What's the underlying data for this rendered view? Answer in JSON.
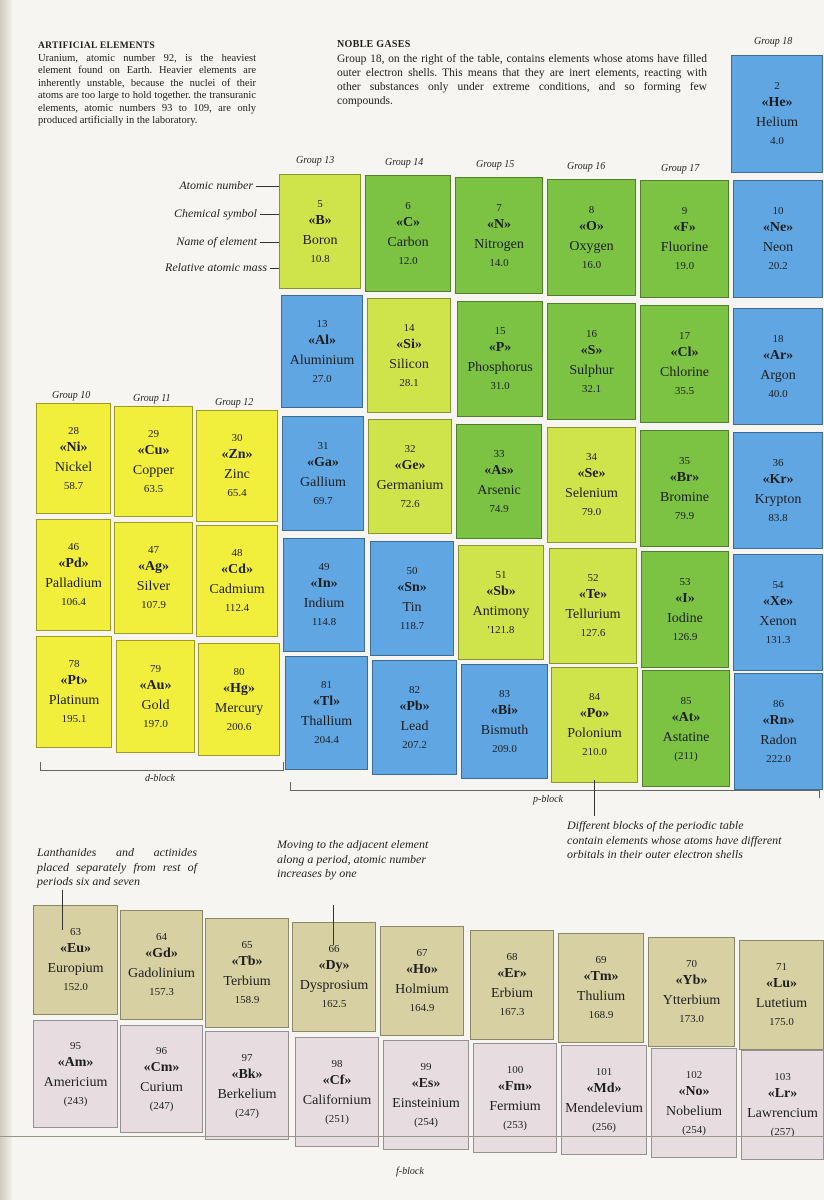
{
  "artificial": {
    "heading": "ARTIFICIAL ELEMENTS",
    "body": "Uranium, atomic number 92, is the heaviest element found on Earth. Heavier elements are inherently unstable, because the nuclei of their atoms are too large to hold together. the transuranic elements, atomic numbers 93 to 109, are only produced artificially in the laboratory."
  },
  "noble": {
    "heading": "NOBLE GASES",
    "body": "Group 18, on the right of the table, contains elements whose atoms have filled outer electron shells. This means that they are inert elements, reacting with other substances only under extreme conditions, and so forming few compounds."
  },
  "group_labels": {
    "g10": "Group 10",
    "g11": "Group 11",
    "g12": "Group 12",
    "g13": "Group 13",
    "g14": "Group 14",
    "g15": "Group 15",
    "g16": "Group 16",
    "g17": "Group 17",
    "g18": "Group 18"
  },
  "legend": {
    "atomic_number": "Atomic number",
    "chemical_symbol": "Chemical symbol",
    "name_of_element": "Name of element",
    "relative_atomic_mass": "Relative atomic mass"
  },
  "blocks": {
    "d": "d-block",
    "p": "p-block",
    "f": "f-block"
  },
  "notes": {
    "blocks_note": "Different blocks of the periodic table contain elements whose atoms have different orbitals in their outer electron shells",
    "lanthanides_note": "Lanthanides and actinides placed separately from rest of periods six and seven",
    "adjacent_note": "Moving to the adjacent element along a period, atomic number increases by one"
  },
  "colors": {
    "yellow": "#f1ef3b",
    "lime": "#cfe44a",
    "green": "#7cc243",
    "blue": "#5fa6e3",
    "lanthanide": "#d6d0a2",
    "actinide": "#e7dde0"
  },
  "tiles": {
    "He": {
      "num": "2",
      "sym": "«He»",
      "name": "Helium",
      "mass": "4.0"
    },
    "B": {
      "num": "5",
      "sym": "«B»",
      "name": "Boron",
      "mass": "10.8"
    },
    "C": {
      "num": "6",
      "sym": "«C»",
      "name": "Carbon",
      "mass": "12.0"
    },
    "N": {
      "num": "7",
      "sym": "«N»",
      "name": "Nitrogen",
      "mass": "14.0"
    },
    "O": {
      "num": "8",
      "sym": "«O»",
      "name": "Oxygen",
      "mass": "16.0"
    },
    "F": {
      "num": "9",
      "sym": "«F»",
      "name": "Fluorine",
      "mass": "19.0"
    },
    "Ne": {
      "num": "10",
      "sym": "«Ne»",
      "name": "Neon",
      "mass": "20.2"
    },
    "Al": {
      "num": "13",
      "sym": "«Al»",
      "name": "Aluminium",
      "mass": "27.0"
    },
    "Si": {
      "num": "14",
      "sym": "«Si»",
      "name": "Silicon",
      "mass": "28.1"
    },
    "P": {
      "num": "15",
      "sym": "«P»",
      "name": "Phosphorus",
      "mass": "31.0"
    },
    "S": {
      "num": "16",
      "sym": "«S»",
      "name": "Sulphur",
      "mass": "32.1"
    },
    "Cl": {
      "num": "17",
      "sym": "«Cl»",
      "name": "Chlorine",
      "mass": "35.5"
    },
    "Ar": {
      "num": "18",
      "sym": "«Ar»",
      "name": "Argon",
      "mass": "40.0"
    },
    "Ni": {
      "num": "28",
      "sym": "«Ni»",
      "name": "Nickel",
      "mass": "58.7"
    },
    "Cu": {
      "num": "29",
      "sym": "«Cu»",
      "name": "Copper",
      "mass": "63.5"
    },
    "Zn": {
      "num": "30",
      "sym": "«Zn»",
      "name": "Zinc",
      "mass": "65.4"
    },
    "Ga": {
      "num": "31",
      "sym": "«Ga»",
      "name": "Gallium",
      "mass": "69.7"
    },
    "Ge": {
      "num": "32",
      "sym": "«Ge»",
      "name": "Germanium",
      "mass": "72.6"
    },
    "As": {
      "num": "33",
      "sym": "«As»",
      "name": "Arsenic",
      "mass": "74.9"
    },
    "Se": {
      "num": "34",
      "sym": "«Se»",
      "name": "Selenium",
      "mass": "79.0"
    },
    "Br": {
      "num": "35",
      "sym": "«Br»",
      "name": "Bromine",
      "mass": "79.9"
    },
    "Kr": {
      "num": "36",
      "sym": "«Kr»",
      "name": "Krypton",
      "mass": "83.8"
    },
    "Pd": {
      "num": "46",
      "sym": "«Pd»",
      "name": "Palladium",
      "mass": "106.4"
    },
    "Ag": {
      "num": "47",
      "sym": "«Ag»",
      "name": "Silver",
      "mass": "107.9"
    },
    "Cd": {
      "num": "48",
      "sym": "«Cd»",
      "name": "Cadmium",
      "mass": "112.4"
    },
    "In": {
      "num": "49",
      "sym": "«In»",
      "name": "Indium",
      "mass": "114.8"
    },
    "Sn": {
      "num": "50",
      "sym": "«Sn»",
      "name": "Tin",
      "mass": "118.7"
    },
    "Sb": {
      "num": "51",
      "sym": "«Sb»",
      "name": "Antimony",
      "mass": "'121.8"
    },
    "Te": {
      "num": "52",
      "sym": "«Te»",
      "name": "Tellurium",
      "mass": "127.6"
    },
    "I": {
      "num": "53",
      "sym": "«I»",
      "name": "Iodine",
      "mass": "126.9"
    },
    "Xe": {
      "num": "54",
      "sym": "«Xe»",
      "name": "Xenon",
      "mass": "131.3"
    },
    "Pt": {
      "num": "78",
      "sym": "«Pt»",
      "name": "Platinum",
      "mass": "195.1"
    },
    "Au": {
      "num": "79",
      "sym": "«Au»",
      "name": "Gold",
      "mass": "197.0"
    },
    "Hg": {
      "num": "80",
      "sym": "«Hg»",
      "name": "Mercury",
      "mass": "200.6"
    },
    "Tl": {
      "num": "81",
      "sym": "«Tl»",
      "name": "Thallium",
      "mass": "204.4"
    },
    "Pb": {
      "num": "82",
      "sym": "«Pb»",
      "name": "Lead",
      "mass": "207.2"
    },
    "Bi": {
      "num": "83",
      "sym": "«Bi»",
      "name": "Bismuth",
      "mass": "209.0"
    },
    "Po": {
      "num": "84",
      "sym": "«Po»",
      "name": "Polonium",
      "mass": "210.0"
    },
    "At": {
      "num": "85",
      "sym": "«At»",
      "name": "Astatine",
      "mass": "(211)"
    },
    "Rn": {
      "num": "86",
      "sym": "«Rn»",
      "name": "Radon",
      "mass": "222.0"
    },
    "Eu": {
      "num": "63",
      "sym": "«Eu»",
      "name": "Europium",
      "mass": "152.0"
    },
    "Gd": {
      "num": "64",
      "sym": "«Gd»",
      "name": "Gadolinium",
      "mass": "157.3"
    },
    "Tb": {
      "num": "65",
      "sym": "«Tb»",
      "name": "Terbium",
      "mass": "158.9"
    },
    "Dy": {
      "num": "66",
      "sym": "«Dy»",
      "name": "Dysprosium",
      "mass": "162.5"
    },
    "Ho": {
      "num": "67",
      "sym": "«Ho»",
      "name": "Holmium",
      "mass": "164.9"
    },
    "Er": {
      "num": "68",
      "sym": "«Er»",
      "name": "Erbium",
      "mass": "167.3"
    },
    "Tm": {
      "num": "69",
      "sym": "«Tm»",
      "name": "Thulium",
      "mass": "168.9"
    },
    "Yb": {
      "num": "70",
      "sym": "«Yb»",
      "name": "Ytterbium",
      "mass": "173.0"
    },
    "Lu": {
      "num": "71",
      "sym": "«Lu»",
      "name": "Lutetium",
      "mass": "175.0"
    },
    "Am": {
      "num": "95",
      "sym": "«Am»",
      "name": "Americium",
      "mass": "(243)"
    },
    "Cm": {
      "num": "96",
      "sym": "«Cm»",
      "name": "Curium",
      "mass": "(247)"
    },
    "Bk": {
      "num": "97",
      "sym": "«Bk»",
      "name": "Berkelium",
      "mass": "(247)"
    },
    "Cf": {
      "num": "98",
      "sym": "«Cf»",
      "name": "Californium",
      "mass": "(251)"
    },
    "Es": {
      "num": "99",
      "sym": "«Es»",
      "name": "Einsteinium",
      "mass": "(254)"
    },
    "Fm": {
      "num": "100",
      "sym": "«Fm»",
      "name": "Fermium",
      "mass": "(253)"
    },
    "Md": {
      "num": "101",
      "sym": "«Md»",
      "name": "Mendelevium",
      "mass": "(256)"
    },
    "No": {
      "num": "102",
      "sym": "«No»",
      "name": "Nobelium",
      "mass": "(254)"
    },
    "Lr": {
      "num": "103",
      "sym": "«Lr»",
      "name": "Lawrencium",
      "mass": "(257)"
    }
  }
}
